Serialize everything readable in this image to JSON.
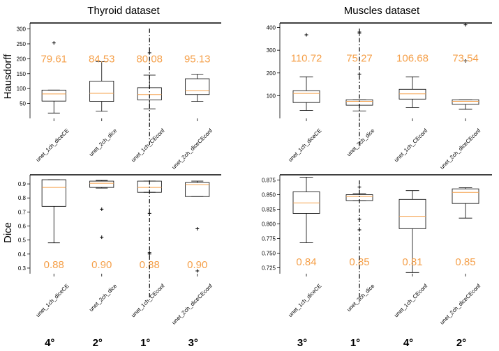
{
  "figure": {
    "col_titles": [
      "Thyroid dataset",
      "Muscles dataset"
    ],
    "row_labels": [
      "Hausdorff",
      "Dice"
    ],
    "accent_color": "#f5a04a"
  },
  "chart_data": [
    {
      "type": "box",
      "id": "thyroid-hausdorff",
      "title": "Thyroid dataset",
      "ylabel": "Hausdorff",
      "ylim": [
        0,
        320
      ],
      "yticks": [
        {
          "v": 50,
          "l": "50"
        },
        {
          "v": 100,
          "l": "100"
        },
        {
          "v": 150,
          "l": "150"
        },
        {
          "v": 200,
          "l": "200"
        },
        {
          "v": 250,
          "l": "250"
        },
        {
          "v": 300,
          "l": "300"
        }
      ],
      "categories": [
        "unet_1ch_diceCE",
        "unet_2ch_dice",
        "unet_1ch_CEconf",
        "unet_2ch_diceCEconf"
      ],
      "boxes": [
        {
          "wlo": 18,
          "q1": 58,
          "med": 82,
          "q3": 95,
          "whi": 95,
          "fliers": [
            253
          ]
        },
        {
          "wlo": 24,
          "q1": 57,
          "med": 84,
          "q3": 125,
          "whi": 190,
          "fliers": []
        },
        {
          "wlo": 32,
          "q1": 62,
          "med": 80,
          "q3": 103,
          "whi": 145,
          "fliers": [
            220
          ]
        },
        {
          "wlo": 57,
          "q1": 80,
          "med": 93,
          "q3": 133,
          "whi": 148,
          "fliers": []
        }
      ],
      "annotations": [
        "79.61",
        "84.53",
        "80.08",
        "95.13"
      ],
      "ann_value": 200,
      "ranks": [
        "4°",
        "2°",
        "1°",
        "3°"
      ],
      "marker_category": 3
    },
    {
      "type": "box",
      "id": "muscles-hausdorff",
      "title": "Muscles dataset",
      "ylabel": "",
      "ylim": [
        0,
        420
      ],
      "yticks": [
        {
          "v": 100,
          "l": "100"
        },
        {
          "v": 200,
          "l": "200"
        },
        {
          "v": 300,
          "l": "300"
        },
        {
          "v": 400,
          "l": "400"
        }
      ],
      "categories": [
        "unet_1ch_diceCE",
        "unet_2ch_dice",
        "unet_1ch_CEconf",
        "unet_2ch_diceCEconf"
      ],
      "boxes": [
        {
          "wlo": 35,
          "q1": 70,
          "med": 110,
          "q3": 122,
          "whi": 183,
          "fliers": [
            368
          ]
        },
        {
          "wlo": 33,
          "q1": 58,
          "med": 75,
          "q3": 82,
          "whi": 82,
          "fliers": [
            195,
            375,
            380
          ]
        },
        {
          "wlo": 48,
          "q1": 85,
          "med": 108,
          "q3": 128,
          "whi": 183,
          "fliers": []
        },
        {
          "wlo": 40,
          "q1": 62,
          "med": 75,
          "q3": 82,
          "whi": 82,
          "fliers": [
            253,
            412
          ]
        }
      ],
      "annotations": [
        "110.72",
        "75.27",
        "106.68",
        "73.54"
      ],
      "ann_value": 265,
      "ranks": [
        "3°",
        "1°",
        "4°",
        "2°"
      ],
      "marker_category": 2
    },
    {
      "type": "box",
      "id": "thyroid-dice",
      "title": "",
      "ylabel": "Dice",
      "ylim": [
        0.26,
        0.965
      ],
      "yticks": [
        {
          "v": 0.3,
          "l": "0.3"
        },
        {
          "v": 0.4,
          "l": "0.4"
        },
        {
          "v": 0.5,
          "l": "0.5"
        },
        {
          "v": 0.6,
          "l": "0.6"
        },
        {
          "v": 0.7,
          "l": "0.7"
        },
        {
          "v": 0.8,
          "l": "0.8"
        },
        {
          "v": 0.9,
          "l": "0.9"
        }
      ],
      "categories": [
        "unet_1ch_diceCE",
        "unet_2ch_dice",
        "unet_1ch_CEconf",
        "unet_2ch_diceCEconf"
      ],
      "boxes": [
        {
          "wlo": 0.48,
          "q1": 0.74,
          "med": 0.875,
          "q3": 0.93,
          "whi": 0.93,
          "fliers": []
        },
        {
          "wlo": 0.87,
          "q1": 0.875,
          "med": 0.905,
          "q3": 0.92,
          "whi": 0.925,
          "fliers": [
            0.72,
            0.52
          ]
        },
        {
          "wlo": 0.84,
          "q1": 0.84,
          "med": 0.875,
          "q3": 0.92,
          "whi": 0.92,
          "fliers": [
            0.69,
            0.41,
            0.4
          ]
        },
        {
          "wlo": 0.81,
          "q1": 0.81,
          "med": 0.895,
          "q3": 0.91,
          "whi": 0.92,
          "fliers": [
            0.58,
            0.28
          ]
        }
      ],
      "annotations": [
        "0.88",
        "0.90",
        "0.88",
        "0.90"
      ],
      "ann_value": 0.325,
      "ranks": [],
      "marker_category": 3
    },
    {
      "type": "box",
      "id": "muscles-dice",
      "title": "",
      "ylabel": "",
      "ylim": [
        0.715,
        0.884
      ],
      "yticks": [
        {
          "v": 0.725,
          "l": "0.725"
        },
        {
          "v": 0.75,
          "l": "0.750"
        },
        {
          "v": 0.775,
          "l": "0.775"
        },
        {
          "v": 0.8,
          "l": "0.800"
        },
        {
          "v": 0.825,
          "l": "0.825"
        },
        {
          "v": 0.85,
          "l": "0.850"
        },
        {
          "v": 0.875,
          "l": "0.875"
        }
      ],
      "categories": [
        "unet_1ch_diceCE",
        "unet_2ch_dice",
        "unet_1ch_CEconf",
        "unet_2ch_diceCEconf"
      ],
      "boxes": [
        {
          "wlo": 0.768,
          "q1": 0.818,
          "med": 0.836,
          "q3": 0.855,
          "whi": 0.88,
          "fliers": []
        },
        {
          "wlo": 0.84,
          "q1": 0.84,
          "med": 0.847,
          "q3": 0.85,
          "whi": 0.852,
          "fliers": [
            0.863,
            0.808,
            0.79
          ]
        },
        {
          "wlo": 0.717,
          "q1": 0.792,
          "med": 0.813,
          "q3": 0.842,
          "whi": 0.857,
          "fliers": []
        },
        {
          "wlo": 0.81,
          "q1": 0.835,
          "med": 0.854,
          "q3": 0.86,
          "whi": 0.862,
          "fliers": []
        }
      ],
      "annotations": [
        "0.84",
        "0.85",
        "0.81",
        "0.85"
      ],
      "ann_value": 0.735,
      "ranks": [],
      "marker_category": 2
    }
  ]
}
